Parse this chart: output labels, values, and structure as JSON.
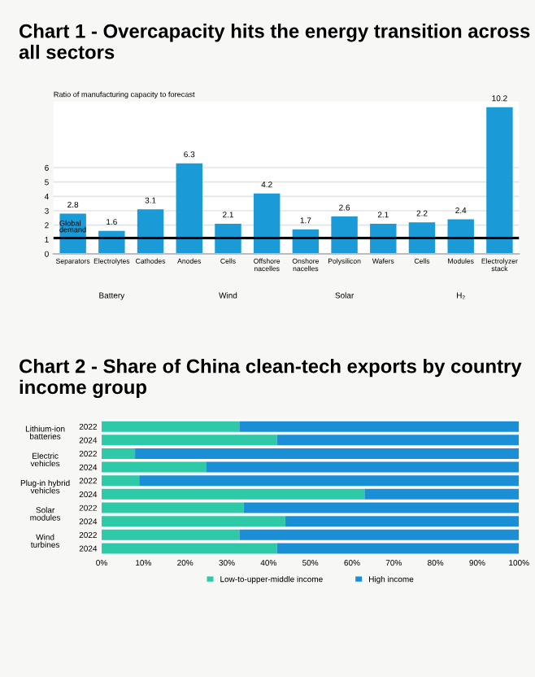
{
  "chart_data": [
    {
      "type": "bar",
      "title": "Chart 1 - Overcapacity hits the energy transition across all sectors",
      "ylabel": "Ratio of manufacturing capacity to forecast",
      "categories": [
        "Separators",
        "Electrolytes",
        "Cathodes",
        "Anodes",
        "Cells",
        "Offshore nacelles",
        "Onshore nacelles",
        "Polysilicon",
        "Wafers",
        "Cells",
        "Modules",
        "Electrolyzer stack"
      ],
      "values": [
        2.8,
        1.6,
        3.1,
        6.3,
        2.1,
        4.2,
        1.7,
        2.6,
        2.1,
        2.2,
        2.4,
        10.2
      ],
      "color": "#1a9ad6",
      "ylim": [
        0,
        10.6
      ],
      "yticks": [
        0,
        1,
        2,
        3,
        4,
        5,
        6
      ],
      "grid": "y",
      "data_labels": true,
      "ref_lines": [
        {
          "axis": "y",
          "value": 1.1,
          "label": "Global demand",
          "color": "#000000"
        }
      ],
      "annotations": [
        "Battery",
        "Wind",
        "Solar",
        "H₂"
      ]
    },
    {
      "type": "bar",
      "orientation": "horizontal",
      "stacked": true,
      "title": "Chart 2 - Share of China clean-tech exports by country income group",
      "categories": [
        "2022",
        "2024",
        "2022",
        "2024",
        "2022",
        "2024",
        "2022",
        "2024",
        "2022",
        "2024"
      ],
      "series": [
        {
          "name": "Low-to-upper-middle income",
          "color": "#2ec9a6",
          "values": [
            33,
            42,
            8,
            25,
            9,
            63,
            34,
            44,
            33,
            42
          ]
        },
        {
          "name": "High income",
          "color": "#1a8fd6",
          "values": [
            67,
            58,
            92,
            75,
            91,
            37,
            66,
            56,
            67,
            58
          ]
        }
      ],
      "xlim": [
        0,
        100
      ],
      "xticks": [
        {
          "value": 0,
          "label": "0%"
        },
        {
          "value": 10,
          "label": "10%"
        },
        {
          "value": 20,
          "label": "20%"
        },
        {
          "value": 30,
          "label": "30%"
        },
        {
          "value": 40,
          "label": "40%"
        },
        {
          "value": 50,
          "label": "50%"
        },
        {
          "value": 60,
          "label": "60%"
        },
        {
          "value": 70,
          "label": "70%"
        },
        {
          "value": 80,
          "label": "80%"
        },
        {
          "value": 90,
          "label": "90%"
        },
        {
          "value": 100,
          "label": "100%"
        }
      ],
      "legend": "bottom",
      "annotations": [
        "Lithium-ion batteries",
        "Electric vehicles",
        "Plug-in hybrid vehicles",
        "Solar modules",
        "Wind turbines"
      ]
    }
  ]
}
